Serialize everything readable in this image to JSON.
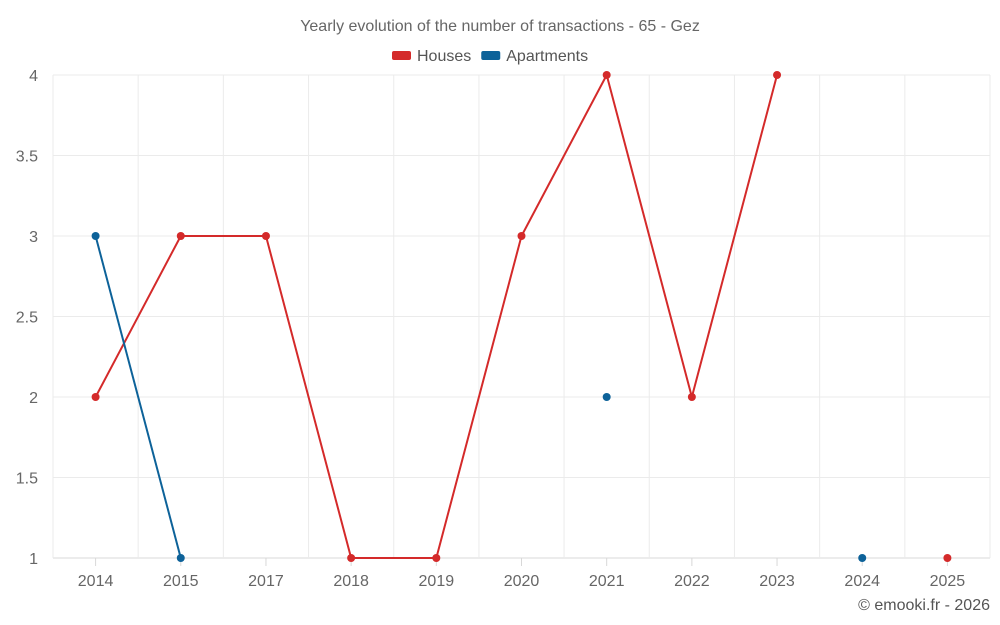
{
  "chart_data": {
    "type": "line",
    "title": "Yearly evolution of the number of transactions - 65 - Gez",
    "categories": [
      "2014",
      "2015",
      "2017",
      "2018",
      "2019",
      "2020",
      "2021",
      "2022",
      "2023",
      "2024",
      "2025"
    ],
    "series": [
      {
        "name": "Houses",
        "color": "#d42a2a",
        "values": [
          2,
          3,
          3,
          1,
          1,
          3,
          4,
          2,
          4,
          null,
          1
        ]
      },
      {
        "name": "Apartments",
        "color": "#0d6299",
        "values": [
          3,
          1,
          null,
          null,
          null,
          null,
          2,
          null,
          null,
          1,
          null
        ]
      }
    ],
    "ylim": [
      1,
      4
    ],
    "yticks": [
      "1",
      "1.5",
      "2",
      "2.5",
      "3",
      "3.5",
      "4"
    ],
    "xlabel": "",
    "ylabel": "",
    "grid": true,
    "legend": "top-center"
  },
  "credit": "© emooki.fr - 2026"
}
